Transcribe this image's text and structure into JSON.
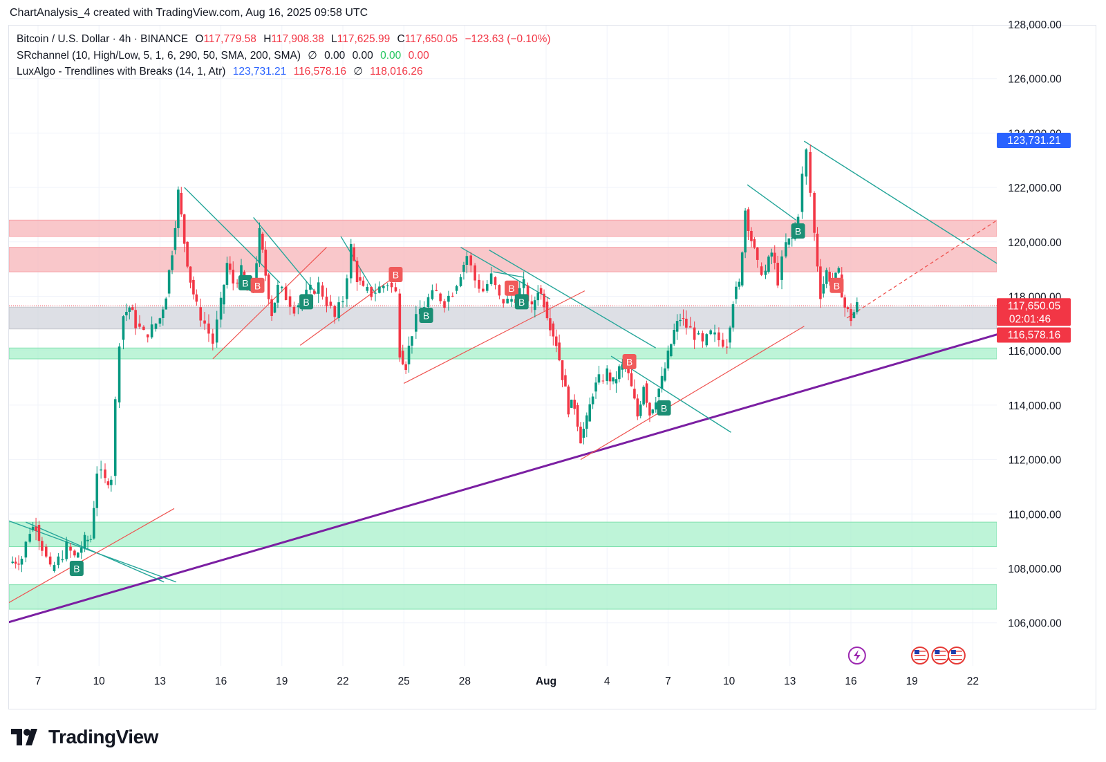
{
  "header": {
    "author_line": "ChartAnalysis_4 created with TradingView.com, Aug 16, 2025 09:58 UTC"
  },
  "legend": {
    "symbol": "Bitcoin / U.S. Dollar · 4h · BINANCE",
    "open_label": "O",
    "open": "117,779.58",
    "high_label": "H",
    "high": "117,908.38",
    "low_label": "L",
    "low": "117,625.99",
    "close_label": "C",
    "close": "117,650.05",
    "change": "−123.63 (−0.10%)",
    "sr_name": "SRchannel (10, High/Low, 5, 1, 6, 290, 50, SMA, 200, SMA)",
    "sr_icon": "∅",
    "sr_v1": "0.00",
    "sr_v2": "0.00",
    "sr_v3": "0.00",
    "sr_v4": "0.00",
    "lux_name": "LuxAlgo - Trendlines with Breaks (14, 1, Atr)",
    "lux_v1": "123,731.21",
    "lux_v2": "116,578.16",
    "lux_icon": "∅",
    "lux_v3": "118,016.26"
  },
  "brand": {
    "name": "TradingView",
    "logo_icon": "tradingview-logo-icon"
  },
  "colors": {
    "up": "#089981",
    "down": "#f23645",
    "purple": "#7b1fa2",
    "resistance_zone": "#f7b4b8",
    "support_zone": "#a8f0cb",
    "grey_zone": "#d1d4dc",
    "blue_label": "#2962ff"
  },
  "chart_data": {
    "type": "candlestick",
    "symbol": "Bitcoin / U.S. Dollar",
    "timeframe": "4h",
    "ylim": [
      104800,
      128200
    ],
    "y_ticks": [
      106000,
      108000,
      110000,
      112000,
      114000,
      116000,
      118000,
      120000,
      122000,
      124000,
      126000,
      128000
    ],
    "y_tick_labels": [
      "106,000.00",
      "108,000.00",
      "110,000.00",
      "112,000.00",
      "114,000.00",
      "116,000.00",
      "118,000.00",
      "120,000.00",
      "122,000.00",
      "124,000.00",
      "126,000.00",
      "128,000.00"
    ],
    "x_ticks": [
      {
        "day": 7,
        "label": "7"
      },
      {
        "day": 10,
        "label": "10"
      },
      {
        "day": 13,
        "label": "13"
      },
      {
        "day": 16,
        "label": "16"
      },
      {
        "day": 19,
        "label": "19"
      },
      {
        "day": 22,
        "label": "22"
      },
      {
        "day": 25,
        "label": "25"
      },
      {
        "day": 28,
        "label": "28"
      },
      {
        "day": 32,
        "label": "Aug",
        "bold": true
      },
      {
        "day": 35,
        "label": "4"
      },
      {
        "day": 38,
        "label": "7"
      },
      {
        "day": 41,
        "label": "10"
      },
      {
        "day": 44,
        "label": "13"
      },
      {
        "day": 47,
        "label": "16"
      },
      {
        "day": 50,
        "label": "19"
      },
      {
        "day": 53,
        "label": "22"
      }
    ],
    "price_path": [
      [
        5.6,
        108200
      ],
      [
        6.2,
        108400
      ],
      [
        6.6,
        109400
      ],
      [
        6.9,
        109600
      ],
      [
        7.2,
        108800
      ],
      [
        7.6,
        107900
      ],
      [
        8.0,
        108300
      ],
      [
        8.4,
        108800
      ],
      [
        8.8,
        108400
      ],
      [
        9.3,
        109000
      ],
      [
        9.6,
        109100
      ],
      [
        9.9,
        111600
      ],
      [
        10.3,
        111200
      ],
      [
        10.6,
        111400
      ],
      [
        10.8,
        114100
      ],
      [
        11.0,
        116400
      ],
      [
        11.2,
        117300
      ],
      [
        11.5,
        117600
      ],
      [
        11.8,
        117000
      ],
      [
        12.2,
        116600
      ],
      [
        12.6,
        116800
      ],
      [
        13.0,
        117200
      ],
      [
        13.3,
        118100
      ],
      [
        13.6,
        119700
      ],
      [
        13.9,
        121800
      ],
      [
        14.2,
        120000
      ],
      [
        14.5,
        118600
      ],
      [
        14.8,
        117600
      ],
      [
        15.2,
        117000
      ],
      [
        15.6,
        116300
      ],
      [
        16.0,
        117700
      ],
      [
        16.3,
        119200
      ],
      [
        16.6,
        118500
      ],
      [
        17.0,
        118900
      ],
      [
        17.3,
        118200
      ],
      [
        17.6,
        118400
      ],
      [
        17.9,
        120300
      ],
      [
        18.2,
        118800
      ],
      [
        18.5,
        117400
      ],
      [
        18.8,
        118300
      ],
      [
        19.2,
        118000
      ],
      [
        19.6,
        117600
      ],
      [
        20.0,
        117900
      ],
      [
        20.4,
        118200
      ],
      [
        20.8,
        118400
      ],
      [
        21.2,
        117800
      ],
      [
        21.6,
        117200
      ],
      [
        22.0,
        117900
      ],
      [
        22.4,
        119800
      ],
      [
        22.7,
        118700
      ],
      [
        23.0,
        118200
      ],
      [
        23.4,
        118100
      ],
      [
        23.8,
        118300
      ],
      [
        24.2,
        118500
      ],
      [
        24.6,
        118100
      ],
      [
        24.8,
        116000
      ],
      [
        25.1,
        115500
      ],
      [
        25.4,
        116700
      ],
      [
        25.8,
        117500
      ],
      [
        26.2,
        117900
      ],
      [
        26.6,
        118100
      ],
      [
        27.0,
        117800
      ],
      [
        27.4,
        118200
      ],
      [
        27.8,
        118900
      ],
      [
        28.1,
        119500
      ],
      [
        28.5,
        118600
      ],
      [
        28.9,
        118200
      ],
      [
        29.3,
        118700
      ],
      [
        29.7,
        117900
      ],
      [
        30.1,
        117800
      ],
      [
        30.5,
        118000
      ],
      [
        30.9,
        118400
      ],
      [
        31.3,
        117500
      ],
      [
        31.6,
        118300
      ],
      [
        31.9,
        117800
      ],
      [
        32.2,
        117000
      ],
      [
        32.5,
        116300
      ],
      [
        32.8,
        115100
      ],
      [
        33.1,
        113900
      ],
      [
        33.4,
        114000
      ],
      [
        33.7,
        112800
      ],
      [
        34.0,
        113400
      ],
      [
        34.3,
        114500
      ],
      [
        34.6,
        114900
      ],
      [
        35.0,
        115200
      ],
      [
        35.3,
        114800
      ],
      [
        35.6,
        115300
      ],
      [
        35.9,
        115500
      ],
      [
        36.2,
        114600
      ],
      [
        36.5,
        113600
      ],
      [
        36.8,
        114800
      ],
      [
        37.1,
        113700
      ],
      [
        37.4,
        114300
      ],
      [
        37.7,
        114900
      ],
      [
        38.0,
        115800
      ],
      [
        38.3,
        116700
      ],
      [
        38.6,
        117200
      ],
      [
        38.9,
        116900
      ],
      [
        39.3,
        116600
      ],
      [
        39.7,
        116200
      ],
      [
        40.1,
        116600
      ],
      [
        40.5,
        116400
      ],
      [
        40.9,
        116300
      ],
      [
        41.2,
        117900
      ],
      [
        41.5,
        118400
      ],
      [
        41.8,
        121200
      ],
      [
        42.1,
        120100
      ],
      [
        42.4,
        119100
      ],
      [
        42.8,
        118900
      ],
      [
        43.1,
        119600
      ],
      [
        43.4,
        118600
      ],
      [
        43.8,
        119900
      ],
      [
        44.1,
        120100
      ],
      [
        44.4,
        121100
      ],
      [
        44.6,
        122400
      ],
      [
        44.8,
        123300
      ],
      [
        45.0,
        121800
      ],
      [
        45.2,
        120300
      ],
      [
        45.5,
        118100
      ],
      [
        45.8,
        118900
      ],
      [
        46.1,
        118500
      ],
      [
        46.4,
        118800
      ],
      [
        46.7,
        117600
      ],
      [
        47.0,
        117200
      ],
      [
        47.3,
        117650
      ]
    ],
    "zones": [
      {
        "kind": "resistance",
        "from": 120200,
        "to": 120800
      },
      {
        "kind": "resistance",
        "from": 118900,
        "to": 119800
      },
      {
        "kind": "grey",
        "from": 116800,
        "to": 117600
      },
      {
        "kind": "support",
        "from": 115700,
        "to": 116100
      },
      {
        "kind": "support",
        "from": 108800,
        "to": 109700
      },
      {
        "kind": "support",
        "from": 106500,
        "to": 107400
      }
    ],
    "main_trendline": {
      "from": [
        5.0,
        105900
      ],
      "to": [
        54.2,
        116600
      ]
    },
    "down_trendlines": [
      [
        [
          5.0,
          109900
        ],
        [
          13.8,
          107500
        ]
      ],
      [
        [
          6.4,
          109700
        ],
        [
          13.2,
          107500
        ]
      ],
      [
        [
          14.2,
          122000
        ],
        [
          18.9,
          118500
        ]
      ],
      [
        [
          17.6,
          120900
        ],
        [
          20.7,
          118100
        ]
      ],
      [
        [
          21.9,
          120200
        ],
        [
          23.6,
          118100
        ]
      ],
      [
        [
          27.8,
          119800
        ],
        [
          32.2,
          117900
        ]
      ],
      [
        [
          29.4,
          118900
        ],
        [
          30.9,
          118700
        ]
      ],
      [
        [
          29.2,
          119700
        ],
        [
          37.4,
          116100
        ]
      ],
      [
        [
          35.2,
          115800
        ],
        [
          41.1,
          113000
        ]
      ],
      [
        [
          41.9,
          122100
        ],
        [
          44.3,
          120800
        ]
      ],
      [
        [
          44.7,
          123700
        ],
        [
          54.2,
          119200
        ]
      ]
    ],
    "up_trendlines": [
      [
        [
          5.0,
          106500
        ],
        [
          13.7,
          110200
        ]
      ],
      [
        [
          15.6,
          115700
        ],
        [
          21.2,
          119800
        ]
      ],
      [
        [
          19.9,
          116200
        ],
        [
          24.7,
          118800
        ]
      ],
      [
        [
          25.0,
          114800
        ],
        [
          33.9,
          118200
        ]
      ],
      [
        [
          33.7,
          112000
        ],
        [
          44.7,
          116900
        ]
      ]
    ],
    "projection_lines": [
      {
        "color": "down",
        "from": [
          44.7,
          123700
        ],
        "to": [
          54.2,
          119200
        ]
      },
      {
        "color": "up",
        "from": [
          46.8,
          117200
        ],
        "to": [
          54.2,
          120800
        ]
      }
    ],
    "signal_markers": [
      {
        "day": 8.9,
        "price": 108000,
        "type": "buy",
        "label": "B"
      },
      {
        "day": 17.2,
        "price": 118500,
        "type": "buy",
        "label": "B"
      },
      {
        "day": 17.8,
        "price": 118400,
        "type": "sell",
        "label": "B"
      },
      {
        "day": 20.2,
        "price": 117800,
        "type": "buy",
        "label": "B"
      },
      {
        "day": 24.6,
        "price": 118800,
        "type": "sell",
        "label": "B"
      },
      {
        "day": 26.1,
        "price": 117300,
        "type": "buy",
        "label": "B"
      },
      {
        "day": 30.3,
        "price": 118300,
        "type": "sell",
        "label": "B"
      },
      {
        "day": 30.8,
        "price": 117800,
        "type": "buy",
        "label": "B"
      },
      {
        "day": 36.1,
        "price": 115600,
        "type": "sell",
        "label": "B"
      },
      {
        "day": 37.8,
        "price": 113900,
        "type": "buy",
        "label": "B"
      },
      {
        "day": 44.4,
        "price": 120400,
        "type": "buy",
        "label": "B"
      },
      {
        "day": 46.3,
        "price": 118400,
        "type": "sell",
        "label": "B"
      }
    ],
    "price_labels": [
      {
        "price": 123731.21,
        "text": "123,731.21",
        "color": "blue"
      },
      {
        "price": 117650.05,
        "text": "117,650.05",
        "sub": "02:01:46",
        "color": "red"
      },
      {
        "price": 116578.16,
        "text": "116,578.16",
        "color": "red"
      }
    ],
    "current_price_line": 117650.05,
    "event_icons": [
      {
        "day": 47.3,
        "icon": "lightning-icon"
      },
      {
        "day": 50.4,
        "icon": "us-flag-icon"
      },
      {
        "day": 51.4,
        "icon": "us-flag-icon"
      },
      {
        "day": 52.2,
        "icon": "us-flag-icon"
      }
    ]
  }
}
